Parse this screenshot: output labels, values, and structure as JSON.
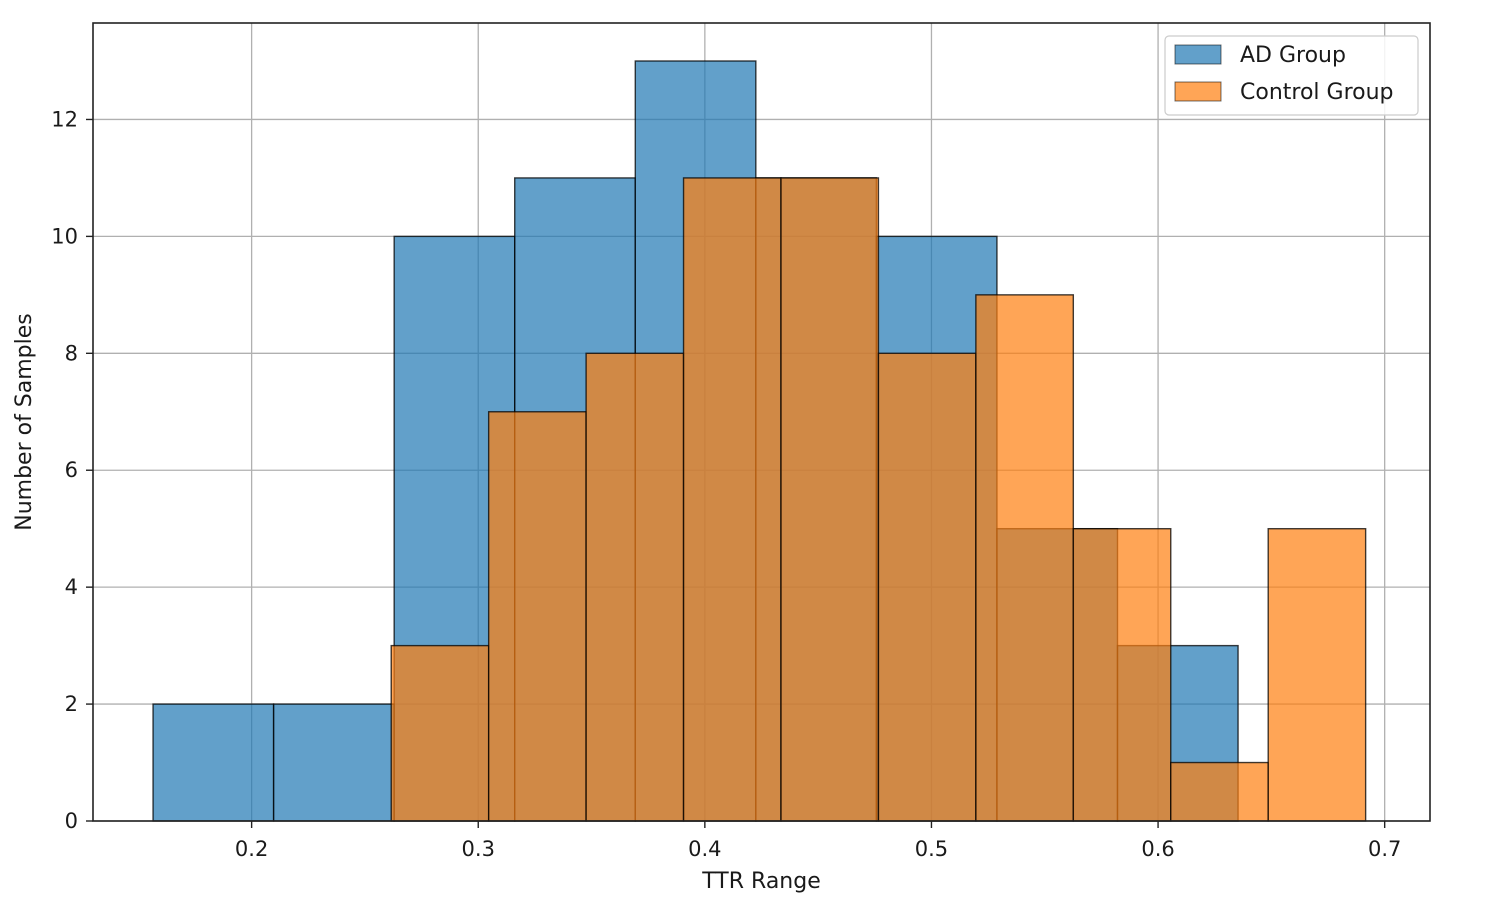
{
  "chart_data": {
    "type": "histogram",
    "title": "",
    "xlabel": "TTR Range",
    "ylabel": "Number of Samples",
    "xlim": [
      0.13,
      0.72
    ],
    "ylim": [
      0,
      13.65
    ],
    "xticks": [
      0.2,
      0.3,
      0.4,
      0.5,
      0.6,
      0.7
    ],
    "xtick_labels": [
      "0.2",
      "0.3",
      "0.4",
      "0.5",
      "0.6",
      "0.7"
    ],
    "yticks": [
      0,
      2,
      4,
      6,
      8,
      10,
      12
    ],
    "ytick_labels": [
      "0",
      "2",
      "4",
      "6",
      "8",
      "10",
      "12"
    ],
    "grid": true,
    "legend_position": "top-right",
    "series": [
      {
        "name": "AD Group",
        "color": "#1f77b4",
        "alpha": 0.7,
        "bin_edges": [
          0.1565,
          0.2097,
          0.2629,
          0.3161,
          0.3693,
          0.4225,
          0.4757,
          0.5289,
          0.5821,
          0.6353
        ],
        "counts": [
          2,
          2,
          10,
          11,
          13,
          11,
          10,
          5,
          3
        ]
      },
      {
        "name": "Control Group",
        "color": "#ff7f0e",
        "alpha": 0.7,
        "bin_edges": [
          0.2616,
          0.3046,
          0.3476,
          0.3906,
          0.4336,
          0.4766,
          0.5196,
          0.5626,
          0.6056,
          0.6486,
          0.6916
        ],
        "counts": [
          3,
          7,
          8,
          11,
          11,
          8,
          9,
          5,
          1,
          5
        ]
      }
    ]
  }
}
